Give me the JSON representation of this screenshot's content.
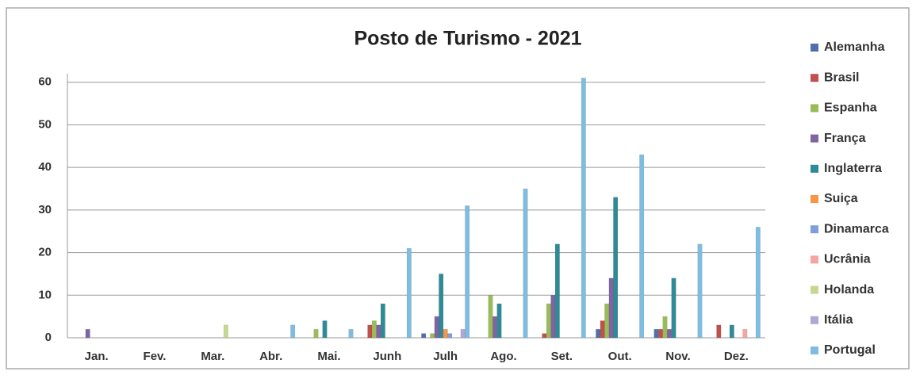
{
  "chart_data": {
    "type": "bar",
    "title": "Posto de Turismo - 2021",
    "categories": [
      "Jan.",
      "Fev.",
      "Mar.",
      "Abr.",
      "Mai.",
      "Junh",
      "Julh",
      "Ago.",
      "Set.",
      "Out.",
      "Nov.",
      "Dez."
    ],
    "series": [
      {
        "name": "Alemanha",
        "color": "#4f6fa8",
        "values": [
          0,
          0,
          0,
          0,
          0,
          0,
          1,
          0,
          0,
          2,
          2,
          0
        ]
      },
      {
        "name": "Brasil",
        "color": "#c0504d",
        "values": [
          0,
          0,
          0,
          0,
          0,
          3,
          0,
          0,
          1,
          4,
          2,
          3
        ]
      },
      {
        "name": "Espanha",
        "color": "#9bbb59",
        "values": [
          0,
          0,
          0,
          0,
          2,
          4,
          1,
          10,
          8,
          8,
          5,
          0
        ]
      },
      {
        "name": "França",
        "color": "#8064a2",
        "values": [
          2,
          0,
          0,
          0,
          0,
          3,
          5,
          5,
          10,
          14,
          2,
          0
        ]
      },
      {
        "name": "Inglaterra",
        "color": "#2e8a96",
        "values": [
          0,
          0,
          0,
          0,
          4,
          8,
          15,
          8,
          22,
          33,
          14,
          3
        ]
      },
      {
        "name": "Suiça",
        "color": "#f79646",
        "values": [
          0,
          0,
          0,
          0,
          0,
          0,
          2,
          0,
          0,
          0,
          0,
          0
        ]
      },
      {
        "name": "Dinamarca",
        "color": "#7f9fdc",
        "values": [
          0,
          0,
          0,
          0,
          0,
          0,
          1,
          0,
          0,
          0,
          0,
          0
        ]
      },
      {
        "name": "Ucrânia",
        "color": "#f4a6a4",
        "values": [
          0,
          0,
          0,
          0,
          0,
          0,
          0,
          0,
          0,
          0,
          0,
          2
        ]
      },
      {
        "name": "Holanda",
        "color": "#c4d98e",
        "values": [
          0,
          0,
          3,
          0,
          0,
          0,
          0,
          0,
          0,
          0,
          0,
          0
        ]
      },
      {
        "name": "Itália",
        "color": "#b3a6d6",
        "values": [
          0,
          0,
          0,
          0,
          0,
          0,
          2,
          0,
          0,
          0,
          0,
          0
        ]
      },
      {
        "name": "Portugal",
        "color": "#7fbde0",
        "values": [
          0,
          0,
          0,
          3,
          2,
          21,
          31,
          35,
          61,
          43,
          22,
          26
        ]
      }
    ],
    "ylim": [
      0,
      62
    ],
    "yticks": [
      0,
      10,
      20,
      30,
      40,
      50,
      60
    ],
    "grid": true,
    "legend": "right"
  }
}
